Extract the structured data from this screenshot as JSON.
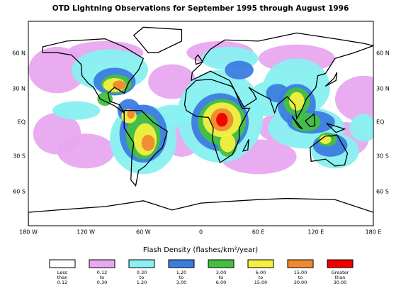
{
  "title": "OTD Lightning Observations for September 1995 through August 1996",
  "axes": {
    "left_labels": [
      "60 N",
      "30 N",
      "EQ",
      "30 S",
      "60 S"
    ],
    "right_labels": [
      "60 N",
      "30 N",
      "EQ",
      "30 S",
      "60 S"
    ],
    "bottom_labels": [
      "180 W",
      "120 W",
      "60 W",
      "0",
      "60 E",
      "120 E",
      "180 E"
    ]
  },
  "legend": {
    "title": "Flash Density (flashes/km²/year)",
    "items": [
      {
        "lines": [
          "Less",
          "than",
          "0.12"
        ],
        "color": "#ffffff"
      },
      {
        "lines": [
          "0.12",
          "to",
          "0.30"
        ],
        "color": "#e8a8f0"
      },
      {
        "lines": [
          "0.30",
          "to",
          "1.20"
        ],
        "color": "#88f0f0"
      },
      {
        "lines": [
          "1.20",
          "to",
          "3.00"
        ],
        "color": "#3c7ce0"
      },
      {
        "lines": [
          "3.00",
          "to",
          "6.00"
        ],
        "color": "#44c040"
      },
      {
        "lines": [
          "6.00",
          "to",
          "15.00"
        ],
        "color": "#f4f040"
      },
      {
        "lines": [
          "15.00",
          "to",
          "30.00"
        ],
        "color": "#f08830"
      },
      {
        "lines": [
          "Greater",
          "than",
          "30.00"
        ],
        "color": "#f00000"
      }
    ]
  }
}
